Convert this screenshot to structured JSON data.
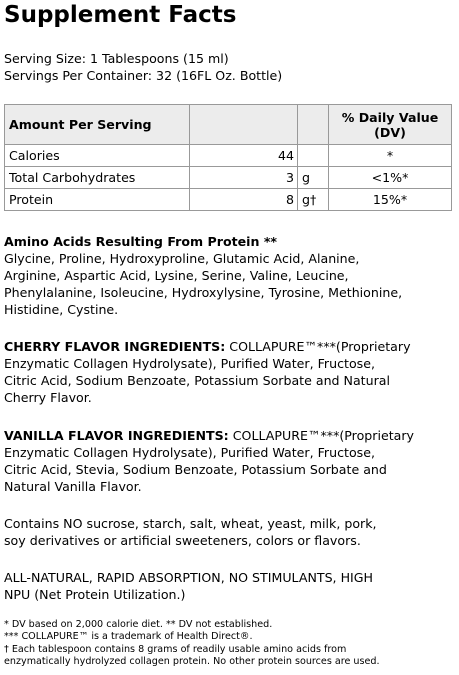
{
  "title": "Supplement Facts",
  "serving": [
    "Serving Size: 1 Tablespoons (15 ml)",
    "Servings Per Container: 32 (16FL Oz. Bottle)"
  ],
  "table": {
    "header": {
      "amount": "Amount Per Serving",
      "dv": [
        "% Daily Value",
        "(DV)"
      ]
    },
    "rows": [
      {
        "name": "Calories",
        "amount": 44,
        "dv": "*"
      },
      {
        "name": "Total Carbohydrates",
        "amount": 3,
        "unit": "g",
        "dv": "<1%*"
      },
      {
        "name": "Protein",
        "amount": 8,
        "unit": "g†",
        "dv": "15%*"
      }
    ]
  },
  "amino": {
    "heading": "Amino Acids Resulting From Protein **",
    "lines": [
      "Glycine, Proline, Hydroxyproline, Glutamic Acid, Alanine,",
      "Arginine, Aspartic Acid, Lysine, Serine, Valine, Leucine,",
      "Phenylalanine, Isoleucine, Hydroxylysine, Tyrosine, Methionine,",
      "Histidine, Cystine."
    ]
  },
  "cherry": {
    "lead": "CHERRY FLAVOR INGREDIENTS:",
    "lines": [
      "COLLAPURE™***(Proprietary",
      "Enzymatic Collagen Hydrolysate), Purified Water, Fructose,",
      "Citric Acid, Sodium Benzoate, Potassium Sorbate and Natural",
      "Cherry Flavor."
    ]
  },
  "vanilla": {
    "lead": "VANILLA FLAVOR INGREDIENTS:",
    "lines": [
      "COLLAPURE™***(Proprietary",
      "Enzymatic Collagen Hydrolysate), Purified Water, Fructose,",
      "Citric Acid, Stevia, Sodium Benzoate, Potassium Sorbate and",
      "Natural Vanilla Flavor."
    ]
  },
  "contains": [
    "Contains NO sucrose, starch, salt, wheat, yeast, milk, pork,",
    "soy derivatives or artificial sweeteners, colors or flavors."
  ],
  "claims": [
    "ALL-NATURAL, RAPID ABSORPTION, NO STIMULANTS, HIGH",
    "NPU (Net Protein Utilization.)"
  ],
  "footnotes": [
    "* DV based on 2,000 calorie diet. ** DV not established.",
    "*** COLLAPURE™ is a trademark of Health Direct®.",
    "† Each tablespoon contains 8 grams of readily usable amino acids from",
    "enzymatically hydrolyzed collagen protein. No other protein sources are used."
  ]
}
